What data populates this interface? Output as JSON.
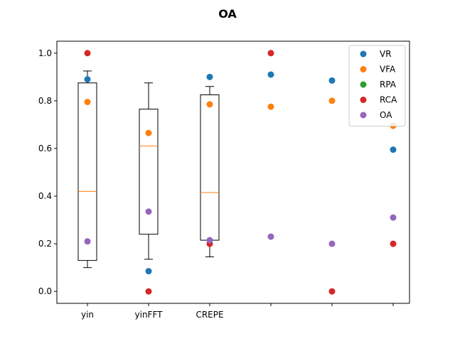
{
  "chart_data": {
    "type": "scatter",
    "title": "OA",
    "xlabel": "",
    "ylabel": "",
    "categories": [
      "yin",
      "yinFFT",
      "CREPE",
      "",
      "",
      ""
    ],
    "ylim": [
      -0.05,
      1.05
    ],
    "yticks": [
      "0.0",
      "0.2",
      "0.4",
      "0.6",
      "0.8",
      "1.0"
    ],
    "grid": false,
    "legend_position": "top-right",
    "series": [
      {
        "name": "VR",
        "color": "#1f77b4",
        "values": [
          0.89,
          0.085,
          0.9,
          0.91,
          0.885,
          0.595
        ]
      },
      {
        "name": "VFA",
        "color": "#ff7f0e",
        "values": [
          0.795,
          0.665,
          0.785,
          0.775,
          0.8,
          0.695
        ]
      },
      {
        "name": "RPA",
        "color": "#2ca02c",
        "values": [
          null,
          null,
          null,
          null,
          null,
          null
        ]
      },
      {
        "name": "RCA",
        "color": "#d62728",
        "values": [
          1.0,
          0.0,
          0.2,
          1.0,
          0.0,
          0.2
        ]
      },
      {
        "name": "OA",
        "color": "#9467bd",
        "values": [
          0.21,
          0.335,
          0.215,
          0.23,
          0.2,
          0.31
        ]
      }
    ],
    "boxplots": [
      {
        "category": "yin",
        "whisker_low": 0.1,
        "q1": 0.13,
        "median": 0.42,
        "q3": 0.875,
        "whisker_high": 0.925
      },
      {
        "category": "yinFFT",
        "whisker_low": 0.135,
        "q1": 0.24,
        "median": 0.61,
        "q3": 0.765,
        "whisker_high": 0.875
      },
      {
        "category": "CREPE",
        "whisker_low": 0.145,
        "q1": 0.215,
        "median": 0.415,
        "q3": 0.825,
        "whisker_high": 0.86
      }
    ],
    "median_color": "#ff7f0e"
  }
}
